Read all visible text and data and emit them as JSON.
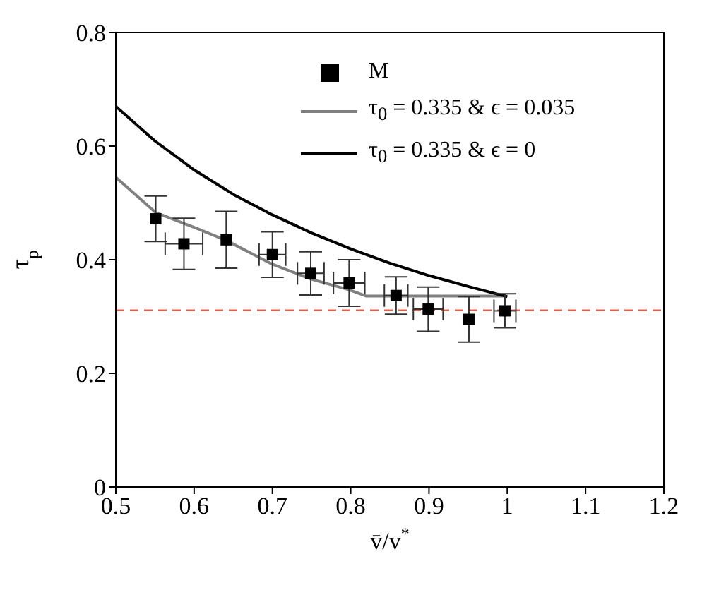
{
  "chart_data": {
    "type": "scatter",
    "xlabel": "v̄/v$^{*}$",
    "ylabel": "τ$_{p}$",
    "xlim": [
      0.5,
      1.2
    ],
    "xticks": [
      0.5,
      0.6,
      0.7,
      0.8,
      0.9,
      1,
      1.1,
      1.2
    ],
    "ylim": [
      0,
      0.8
    ],
    "yticks": [
      0,
      0.2,
      0.4,
      0.6,
      0.8
    ],
    "grid": false,
    "legend": "top",
    "series": [
      {
        "name": "M",
        "marker": "square",
        "color": "#000000",
        "x": [
          0.551,
          0.587,
          0.641,
          0.7,
          0.749,
          0.798,
          0.858,
          0.899,
          0.951,
          0.997
        ],
        "values": [
          0.472,
          0.428,
          0.435,
          0.409,
          0.376,
          0.359,
          0.337,
          0.313,
          0.295,
          0.31
        ],
        "errors": [
          0.04,
          0.045,
          0.05,
          0.04,
          0.038,
          0.041,
          0.033,
          0.039,
          0.04,
          0.03
        ],
        "xerrors": [
          null,
          0.024,
          null,
          0.017,
          0.017,
          0.02,
          0.015,
          0.019,
          null,
          0.014
        ]
      },
      {
        "name": "τ$_{0}$ = 0.335 & ϵ = 0.035",
        "type": "line",
        "marker": "none",
        "color": "#808080",
        "x": [
          0.5,
          0.551,
          0.6,
          0.641,
          0.7,
          0.749,
          0.798,
          0.82,
          0.9,
          1.0
        ],
        "values": [
          0.545,
          0.483,
          0.457,
          0.434,
          0.392,
          0.366,
          0.347,
          0.336,
          0.336,
          0.336
        ]
      },
      {
        "name": "τ$_{0}$ = 0.335 & ϵ = 0",
        "type": "line",
        "marker": "none",
        "color": "#000000",
        "x": [
          0.5,
          0.55,
          0.6,
          0.65,
          0.7,
          0.75,
          0.8,
          0.85,
          0.9,
          0.95,
          1.0
        ],
        "values": [
          0.67,
          0.609,
          0.558,
          0.515,
          0.479,
          0.447,
          0.419,
          0.394,
          0.372,
          0.353,
          0.335
        ]
      }
    ],
    "ref_lines": [
      {
        "axis": "y",
        "value": 0.311,
        "color": "#e0604c",
        "line_style": "dashed"
      }
    ]
  }
}
